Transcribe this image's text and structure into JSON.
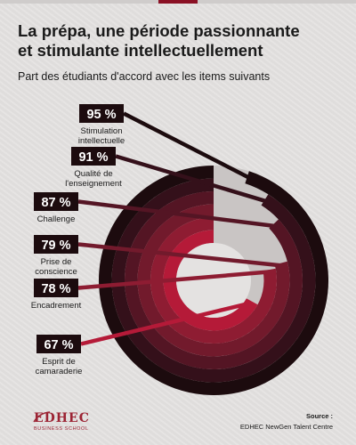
{
  "title_line1": "La prépa, une période passionnante",
  "title_line2": "et stimulante intellectuellement",
  "subtitle": "Part des étudiants d'accord avec les items suivants",
  "source_label": "Source :",
  "source_text": "EDHEC NewGen Talent Centre",
  "logo": {
    "name": "EDHEC",
    "sub": "BUSINESS SCHOOL"
  },
  "colors": {
    "background": "#e4e2e1",
    "rings": [
      "#1c0b0e",
      "#34101a",
      "#541524",
      "#721a2c",
      "#8e1c32",
      "#b51a38"
    ],
    "unfilled": "#c9c5c4",
    "label_box": "#1c0b0e"
  },
  "chart_data": {
    "type": "radial-bar",
    "title": "La prépa, une période passionnante et stimulante intellectuellement",
    "subtitle": "Part des étudiants d'accord avec les items suivants",
    "unit": "%",
    "categories": [
      "Stimulation intellectuelle",
      "Qualité de l'enseignement",
      "Challenge",
      "Prise de conscience",
      "Encadrement",
      "Esprit de camaraderie"
    ],
    "value_labels": [
      "95 %",
      "91 %",
      "87 %",
      "79 %",
      "78 %",
      "67 %"
    ],
    "label_lines": [
      [
        "Stimulation",
        "intellectuelle"
      ],
      [
        "Qualité de",
        "l'enseignement"
      ],
      [
        "Challenge"
      ],
      [
        "Prise de",
        "conscience"
      ],
      [
        "Encadrement"
      ],
      [
        "Esprit de",
        "camaraderie"
      ]
    ],
    "values": [
      95,
      91,
      87,
      79,
      78,
      67
    ],
    "max": 100
  }
}
